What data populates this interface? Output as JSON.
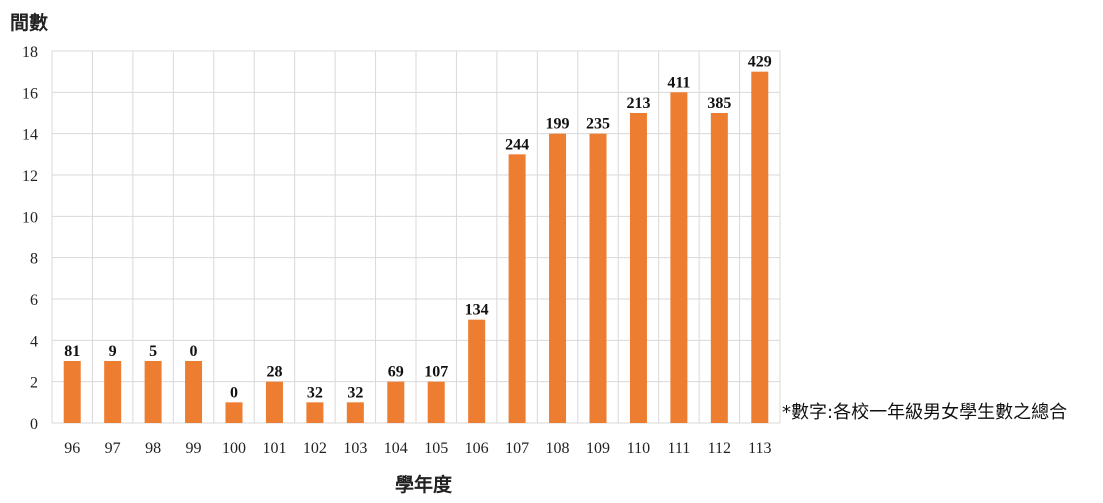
{
  "chart_data": {
    "type": "bar",
    "ylabel": "間數",
    "xlabel": "學年度",
    "note": "*數字:各校一年級男女學生數之總合",
    "ylim": [
      0,
      18
    ],
    "yticks": [
      0,
      2,
      4,
      6,
      8,
      10,
      12,
      14,
      16,
      18
    ],
    "grid": true,
    "bar_color": "#ED7D31",
    "categories": [
      "96",
      "97",
      "98",
      "99",
      "100",
      "101",
      "102",
      "103",
      "104",
      "105",
      "106",
      "107",
      "108",
      "109",
      "110",
      "111",
      "112",
      "113"
    ],
    "values": [
      3,
      3,
      3,
      3,
      1,
      2,
      1,
      1,
      2,
      2,
      5,
      13,
      14,
      14,
      15,
      16,
      15,
      17
    ],
    "data_labels": [
      "81",
      "9",
      "5",
      "0",
      "0",
      "28",
      "32",
      "32",
      "69",
      "107",
      "134",
      "244",
      "199",
      "235",
      "213",
      "411",
      "385",
      "429"
    ]
  }
}
